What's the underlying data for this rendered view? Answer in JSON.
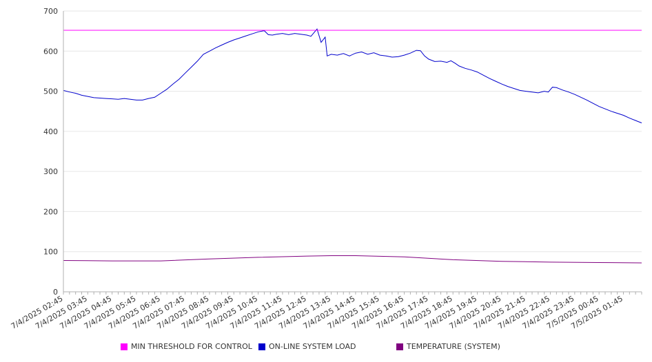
{
  "chart_data": {
    "type": "line",
    "title": "",
    "xlabel": "",
    "ylabel": "",
    "ylim": [
      0,
      700
    ],
    "yticks": [
      0,
      100,
      200,
      300,
      400,
      500,
      600,
      700
    ],
    "grid": true,
    "legend_position": "bottom",
    "x_tick_labels": [
      "7/4/2025 02:45",
      "7/4/2025 03:45",
      "7/4/2025 04:45",
      "7/4/2025 05:45",
      "7/4/2025 06:45",
      "7/4/2025 07:45",
      "7/4/2025 08:45",
      "7/4/2025 09:45",
      "7/4/2025 10:45",
      "7/4/2025 11:45",
      "7/4/2025 12:45",
      "7/4/2025 13:45",
      "7/4/2025 14:45",
      "7/4/2025 15:45",
      "7/4/2025 16:45",
      "7/4/2025 17:45",
      "7/4/2025 18:45",
      "7/4/2025 19:45",
      "7/4/2025 20:45",
      "7/4/2025 21:45",
      "7/4/2025 22:45",
      "7/4/2025 23:45",
      "7/5/2025 00:45",
      "7/5/2025 01:45"
    ],
    "series": [
      {
        "name": "MIN THRESHOLD FOR CONTROL",
        "color": "#ff00ff",
        "points": [
          [
            "7/4/2025 02:45",
            652
          ],
          [
            "7/5/2025 02:30",
            652
          ]
        ]
      },
      {
        "name": "ON-LINE SYSTEM LOAD",
        "color": "#0000cc",
        "points": [
          [
            "7/4/2025 02:45",
            502
          ],
          [
            "7/4/2025 03:00",
            498
          ],
          [
            "7/4/2025 03:15",
            495
          ],
          [
            "7/4/2025 03:30",
            490
          ],
          [
            "7/4/2025 03:45",
            487
          ],
          [
            "7/4/2025 04:00",
            484
          ],
          [
            "7/4/2025 04:15",
            483
          ],
          [
            "7/4/2025 04:30",
            482
          ],
          [
            "7/4/2025 04:45",
            481
          ],
          [
            "7/4/2025 05:00",
            480
          ],
          [
            "7/4/2025 05:15",
            482
          ],
          [
            "7/4/2025 05:30",
            480
          ],
          [
            "7/4/2025 05:45",
            478
          ],
          [
            "7/4/2025 06:00",
            478
          ],
          [
            "7/4/2025 06:15",
            482
          ],
          [
            "7/4/2025 06:30",
            485
          ],
          [
            "7/4/2025 06:45",
            495
          ],
          [
            "7/4/2025 07:00",
            505
          ],
          [
            "7/4/2025 07:15",
            518
          ],
          [
            "7/4/2025 07:30",
            530
          ],
          [
            "7/4/2025 07:45",
            545
          ],
          [
            "7/4/2025 08:00",
            560
          ],
          [
            "7/4/2025 08:15",
            575
          ],
          [
            "7/4/2025 08:30",
            592
          ],
          [
            "7/4/2025 08:45",
            600
          ],
          [
            "7/4/2025 09:00",
            608
          ],
          [
            "7/4/2025 09:15",
            615
          ],
          [
            "7/4/2025 09:30",
            622
          ],
          [
            "7/4/2025 09:45",
            628
          ],
          [
            "7/4/2025 10:00",
            633
          ],
          [
            "7/4/2025 10:15",
            638
          ],
          [
            "7/4/2025 10:30",
            643
          ],
          [
            "7/4/2025 10:45",
            648
          ],
          [
            "7/4/2025 11:00",
            651
          ],
          [
            "7/4/2025 11:10",
            641
          ],
          [
            "7/4/2025 11:20",
            640
          ],
          [
            "7/4/2025 11:30",
            642
          ],
          [
            "7/4/2025 11:45",
            644
          ],
          [
            "7/4/2025 12:00",
            641
          ],
          [
            "7/4/2025 12:15",
            644
          ],
          [
            "7/4/2025 12:30",
            642
          ],
          [
            "7/4/2025 12:45",
            640
          ],
          [
            "7/4/2025 12:55",
            637
          ],
          [
            "7/4/2025 13:10",
            655
          ],
          [
            "7/4/2025 13:20",
            622
          ],
          [
            "7/4/2025 13:30",
            635
          ],
          [
            "7/4/2025 13:35",
            588
          ],
          [
            "7/4/2025 13:45",
            592
          ],
          [
            "7/4/2025 14:00",
            590
          ],
          [
            "7/4/2025 14:15",
            594
          ],
          [
            "7/4/2025 14:30",
            588
          ],
          [
            "7/4/2025 14:45",
            595
          ],
          [
            "7/4/2025 15:00",
            598
          ],
          [
            "7/4/2025 15:15",
            592
          ],
          [
            "7/4/2025 15:30",
            596
          ],
          [
            "7/4/2025 15:45",
            590
          ],
          [
            "7/4/2025 16:00",
            588
          ],
          [
            "7/4/2025 16:15",
            585
          ],
          [
            "7/4/2025 16:30",
            586
          ],
          [
            "7/4/2025 16:45",
            590
          ],
          [
            "7/4/2025 17:00",
            595
          ],
          [
            "7/4/2025 17:15",
            602
          ],
          [
            "7/4/2025 17:25",
            601
          ],
          [
            "7/4/2025 17:35",
            588
          ],
          [
            "7/4/2025 17:45",
            580
          ],
          [
            "7/4/2025 18:00",
            574
          ],
          [
            "7/4/2025 18:15",
            575
          ],
          [
            "7/4/2025 18:30",
            572
          ],
          [
            "7/4/2025 18:40",
            576
          ],
          [
            "7/4/2025 18:50",
            570
          ],
          [
            "7/4/2025 19:00",
            563
          ],
          [
            "7/4/2025 19:15",
            557
          ],
          [
            "7/4/2025 19:30",
            553
          ],
          [
            "7/4/2025 19:45",
            548
          ],
          [
            "7/4/2025 20:00",
            540
          ],
          [
            "7/4/2025 20:15",
            532
          ],
          [
            "7/4/2025 20:30",
            525
          ],
          [
            "7/4/2025 20:45",
            518
          ],
          [
            "7/4/2025 21:00",
            512
          ],
          [
            "7/4/2025 21:15",
            507
          ],
          [
            "7/4/2025 21:30",
            502
          ],
          [
            "7/4/2025 21:45",
            500
          ],
          [
            "7/4/2025 22:00",
            498
          ],
          [
            "7/4/2025 22:15",
            496
          ],
          [
            "7/4/2025 22:30",
            500
          ],
          [
            "7/4/2025 22:40",
            498
          ],
          [
            "7/4/2025 22:50",
            510
          ],
          [
            "7/4/2025 23:00",
            509
          ],
          [
            "7/4/2025 23:15",
            503
          ],
          [
            "7/4/2025 23:30",
            498
          ],
          [
            "7/4/2025 23:45",
            492
          ],
          [
            "7/5/2025 00:00",
            485
          ],
          [
            "7/5/2025 00:15",
            478
          ],
          [
            "7/5/2025 00:30",
            470
          ],
          [
            "7/5/2025 00:45",
            462
          ],
          [
            "7/5/2025 01:00",
            456
          ],
          [
            "7/5/2025 01:15",
            450
          ],
          [
            "7/5/2025 01:30",
            445
          ],
          [
            "7/5/2025 01:45",
            440
          ],
          [
            "7/5/2025 02:00",
            433
          ],
          [
            "7/5/2025 02:15",
            427
          ],
          [
            "7/5/2025 02:30",
            421
          ]
        ]
      },
      {
        "name": "TEMPERATURE (SYSTEM)",
        "color": "#800080",
        "points": [
          [
            "7/4/2025 02:45",
            78
          ],
          [
            "7/4/2025 04:45",
            77
          ],
          [
            "7/4/2025 06:45",
            77
          ],
          [
            "7/4/2025 08:45",
            82
          ],
          [
            "7/4/2025 10:45",
            86
          ],
          [
            "7/4/2025 12:45",
            89
          ],
          [
            "7/4/2025 13:45",
            90
          ],
          [
            "7/4/2025 14:45",
            90
          ],
          [
            "7/4/2025 16:45",
            87
          ],
          [
            "7/4/2025 18:45",
            80
          ],
          [
            "7/4/2025 20:45",
            76
          ],
          [
            "7/4/2025 22:45",
            74
          ],
          [
            "7/5/2025 00:45",
            73
          ],
          [
            "7/5/2025 02:30",
            72
          ]
        ]
      }
    ]
  }
}
